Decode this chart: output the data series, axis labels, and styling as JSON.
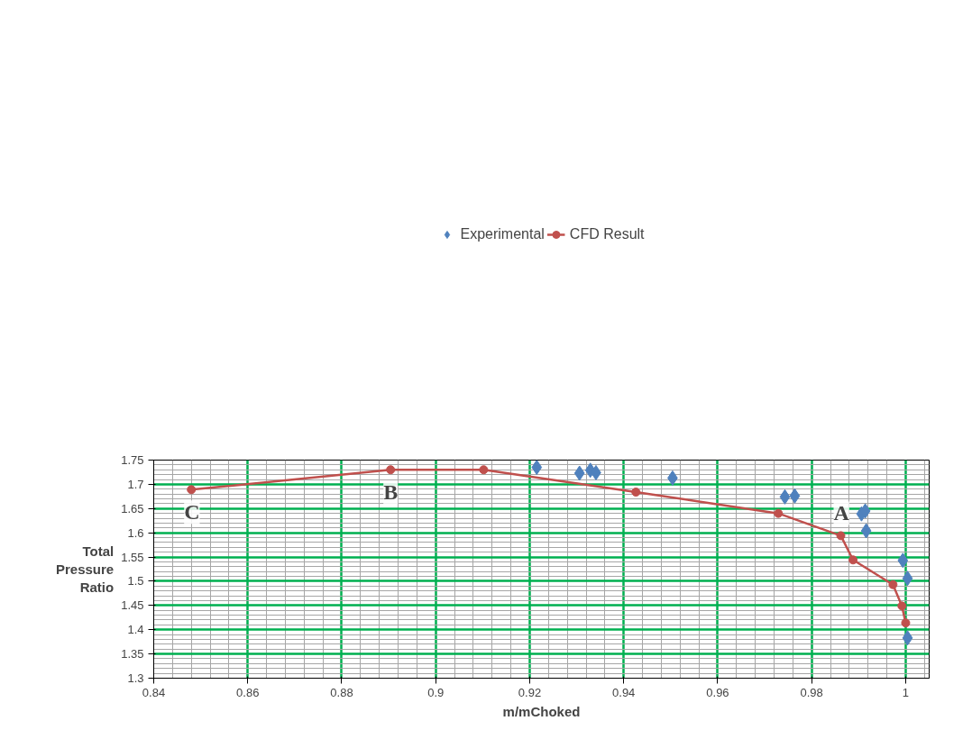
{
  "chart_data": {
    "type": "scatter",
    "xlabel": "m/mChoked",
    "ylabel": "Total Pressure Ratio",
    "xlim": [
      0.84,
      1.005
    ],
    "xticks": [
      0.84,
      0.86,
      0.88,
      0.9,
      0.92,
      0.94,
      0.96,
      0.98,
      1
    ],
    "ylim": [
      1.3,
      1.75
    ],
    "yticks": [
      1.3,
      1.35,
      1.4,
      1.45,
      1.5,
      1.55,
      1.6,
      1.65,
      1.7,
      1.75
    ],
    "grid": true,
    "legend": "top",
    "series": [
      {
        "name": "Experimental",
        "marker": "diamond",
        "color": "#4f81bd",
        "x": [
          0.9215,
          0.9306,
          0.9329,
          0.9341,
          0.9504,
          0.9743,
          0.9764,
          0.9906,
          0.9914,
          0.9916,
          0.9994,
          1.0004,
          1.0004
        ],
        "values": [
          1.735,
          1.723,
          1.729,
          1.724,
          1.713,
          1.674,
          1.676,
          1.639,
          1.645,
          1.604,
          1.543,
          1.506,
          1.383
        ]
      },
      {
        "name": "CFD Result",
        "type": "line",
        "marker": "circle",
        "color": "#c0504d",
        "x": [
          0.848,
          0.8904,
          0.9102,
          0.9426,
          0.9729,
          0.9862,
          0.9888,
          0.9973,
          0.9992,
          1.0
        ],
        "values": [
          1.689,
          1.73,
          1.73,
          1.684,
          1.64,
          1.594,
          1.544,
          1.493,
          1.449,
          1.414
        ]
      }
    ],
    "annotations": [
      {
        "text": "A",
        "x": 0.9862,
        "y": 1.594
      },
      {
        "text": "B",
        "x": 0.8904,
        "y": 1.73
      },
      {
        "text": "C",
        "x": 0.848,
        "y": 1.689
      }
    ]
  }
}
